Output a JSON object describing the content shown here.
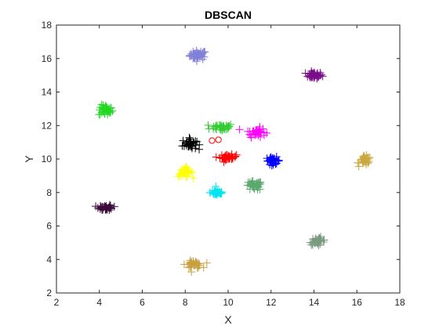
{
  "chart_data": {
    "type": "scatter",
    "title": "DBSCAN",
    "xlabel": "X",
    "ylabel": "Y",
    "xlim": [
      2,
      18
    ],
    "ylim": [
      2,
      18
    ],
    "xticks": [
      "2",
      "4",
      "6",
      "8",
      "10",
      "12",
      "14",
      "16",
      "18"
    ],
    "yticks": [
      "2",
      "4",
      "6",
      "8",
      "10",
      "12",
      "14",
      "16",
      "18"
    ],
    "marker": "plus",
    "grid": false,
    "legend": false,
    "clusters": [
      {
        "color": "#8080d6",
        "center": [
          8.6,
          16.2
        ],
        "spread": [
          0.35,
          0.25
        ],
        "count": 45
      },
      {
        "color": "#7a0e8a",
        "center": [
          14.0,
          15.0
        ],
        "spread": [
          0.35,
          0.18
        ],
        "count": 40
      },
      {
        "color": "#22d822",
        "center": [
          4.3,
          12.9
        ],
        "spread": [
          0.3,
          0.3
        ],
        "count": 35
      },
      {
        "color": "#33cc33",
        "center": [
          9.7,
          11.9
        ],
        "spread": [
          0.5,
          0.2
        ],
        "count": 40
      },
      {
        "color": "#ff00ff",
        "center": [
          11.3,
          11.6
        ],
        "spread": [
          0.4,
          0.25
        ],
        "count": 35
      },
      {
        "color": "#000000",
        "center": [
          8.2,
          10.9
        ],
        "spread": [
          0.3,
          0.3
        ],
        "count": 40
      },
      {
        "color": "#ff0000",
        "center": [
          10.0,
          10.1
        ],
        "spread": [
          0.35,
          0.15
        ],
        "count": 35
      },
      {
        "color": "#0000ff",
        "center": [
          12.1,
          9.9
        ],
        "spread": [
          0.3,
          0.2
        ],
        "count": 35
      },
      {
        "color": "#ffff00",
        "center": [
          8.0,
          9.2
        ],
        "spread": [
          0.3,
          0.25
        ],
        "count": 35
      },
      {
        "color": "#00e5ee",
        "center": [
          9.5,
          8.0
        ],
        "spread": [
          0.3,
          0.2
        ],
        "count": 35
      },
      {
        "color": "#5aa86e",
        "center": [
          11.2,
          8.4
        ],
        "spread": [
          0.35,
          0.25
        ],
        "count": 40
      },
      {
        "color": "#c8a83e",
        "center": [
          16.4,
          9.9
        ],
        "spread": [
          0.25,
          0.25
        ],
        "count": 35
      },
      {
        "color": "#3a0a3a",
        "center": [
          4.3,
          7.1
        ],
        "spread": [
          0.3,
          0.15
        ],
        "count": 35
      },
      {
        "color": "#7a9a80",
        "center": [
          14.2,
          5.1
        ],
        "spread": [
          0.35,
          0.2
        ],
        "count": 35
      },
      {
        "color": "#c8a040",
        "center": [
          8.4,
          3.7
        ],
        "spread": [
          0.35,
          0.2
        ],
        "count": 35
      }
    ],
    "noise_points": [
      {
        "x": 9.25,
        "y": 11.1,
        "color": "#ff0000",
        "marker": "circle"
      },
      {
        "x": 9.55,
        "y": 11.15,
        "color": "#ff0000",
        "marker": "circle"
      }
    ]
  }
}
